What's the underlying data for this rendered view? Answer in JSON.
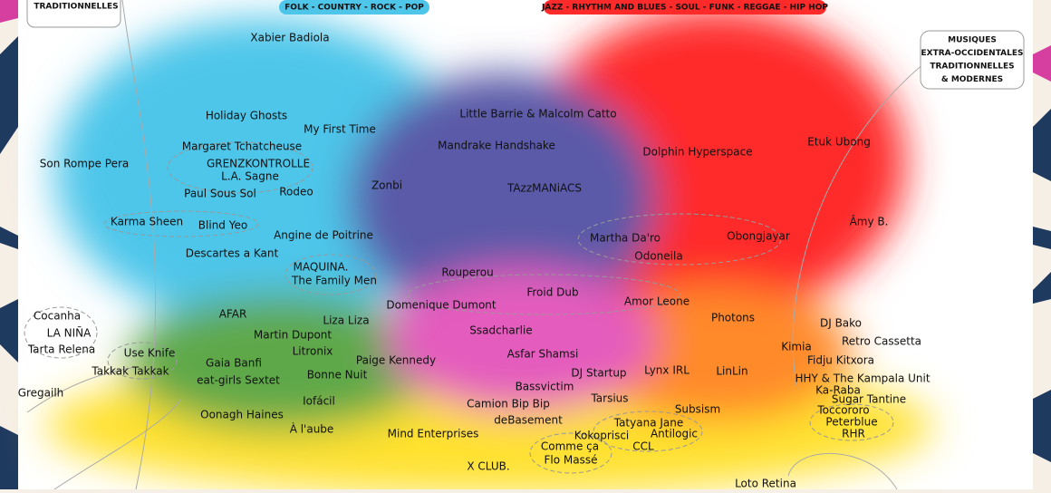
{
  "header": {
    "left_box": "TRADITIONNELLES",
    "folk": "FOLK - COUNTRY - ROCK - POP",
    "jazz": "JAZZ - RHYTHM AND BLUES - SOUL - FUNK - REGGAE - HIP HOP",
    "right_box": [
      "MUSIQUES",
      "EXTRA-OCCIDENTALES",
      "TRADITIONNELLES",
      "& MODERNES"
    ]
  },
  "artists": [
    "Xabier Badiola",
    "Holiday Ghosts",
    "My First Time",
    "Little Barrie & Malcolm Catto",
    "Mandrake Handshake",
    "Dolphin Hyperspace",
    "Etuk Ubong",
    "Margaret Tchatcheuse",
    "GRENZKONTROLLE",
    "L.A. Sagne",
    "Son Rompe Pera",
    "Zonbi",
    "TAzzMANiACS",
    "Paul Sous Sol",
    "Rodeo",
    "Karma Sheen",
    "Blind Yeo",
    "Âmy B.",
    "Angine de Poitrine",
    "Martha Da'ro",
    "Obongjayar",
    "Descartes a Kant",
    "Odoneila",
    "MAQUINA.",
    "The Family Men",
    "Rouperou",
    "Froid Dub",
    "Amor Leone",
    "Domenique Dumont",
    "AFAR",
    "Photons",
    "Liza Liza",
    "Cocanha",
    "DJ Bako",
    "Ssadcharlie",
    "LA NIÑA",
    "Martin Dupont",
    "Retro Cassetta",
    "Tarta Relena",
    "Litronix",
    "Use Knife",
    "Kimia",
    "Asfar Shamsi",
    "Paige Kennedy",
    "Gaia Banfi",
    "Fidju Kitxora",
    "Takkak Takkak",
    "DJ Startup",
    "Lynx IRL",
    "LinLin",
    "Bonne Nuit",
    "eat-girls Sextet",
    "HHY & The Kampala Unit",
    "Bassvictim",
    "Ka-Raba",
    "Gregailh",
    "Iofácil",
    "Tarsius",
    "Sugar Tantine",
    "Camion Bip Bip",
    "Subsism",
    "Toccororo",
    "Oonagh Haines",
    "deBasement",
    "Tatyana Jane",
    "Peterblue",
    "À l'aube",
    "Mind Enterprises",
    "Kokoprisci",
    "Antilogic",
    "RHR",
    "Comme ça",
    "CCL",
    "Flo Massé",
    "X CLUB.",
    "Loto Retina"
  ]
}
